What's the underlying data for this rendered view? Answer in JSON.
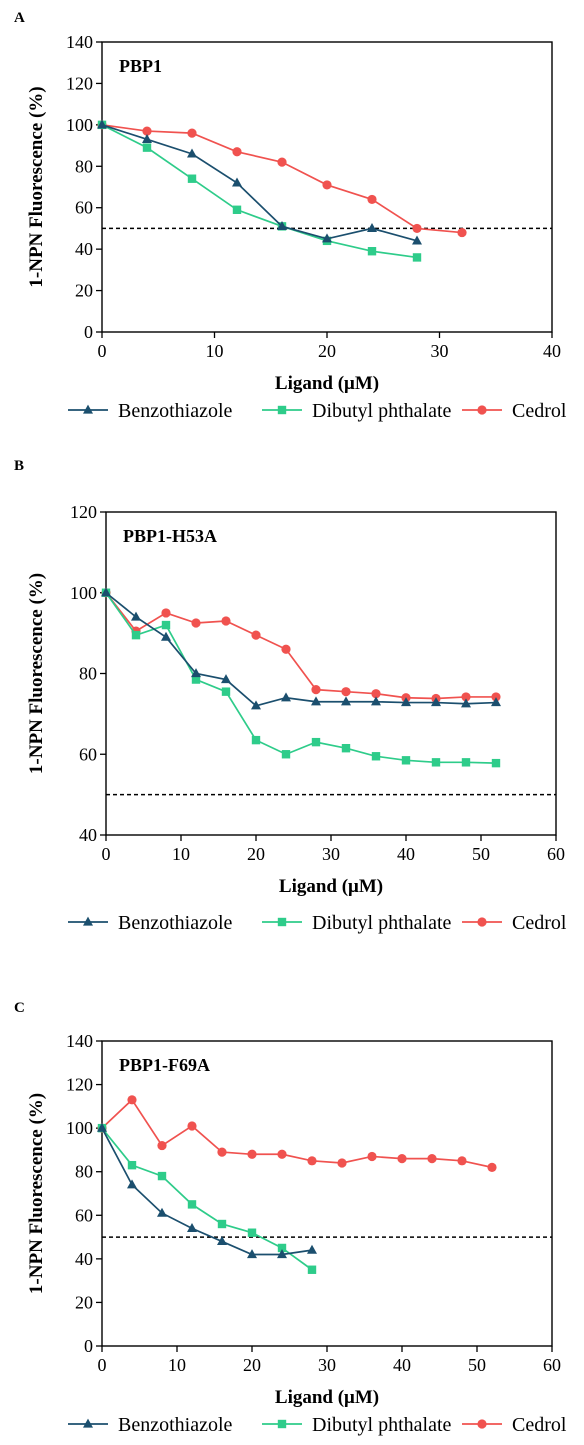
{
  "colors": {
    "benzothiazole": "#1b4f6e",
    "dibutyl_phthalate": "#2ecc8a",
    "cedrol": "#f0524f"
  },
  "legend": [
    {
      "key": "benzothiazole",
      "label": "Benzothiazole",
      "marker": "triangle"
    },
    {
      "key": "dibutyl_phthalate",
      "label": "Dibutyl phthalate",
      "marker": "square"
    },
    {
      "key": "cedrol",
      "label": "Cedrol",
      "marker": "circle"
    }
  ],
  "chart_data": [
    {
      "panel": "A",
      "type": "line",
      "title": "PBP1",
      "xlabel": "Ligand (μM)",
      "ylabel": "1-NPN Fluorescence (%)",
      "xlim": [
        0,
        40
      ],
      "ylim": [
        0,
        140
      ],
      "xticks": [
        0,
        10,
        20,
        30,
        40
      ],
      "yticks": [
        0,
        20,
        40,
        60,
        80,
        100,
        120,
        140
      ],
      "reference_line": 50,
      "series": [
        {
          "name": "Benzothiazole",
          "key": "benzothiazole",
          "marker": "triangle",
          "x": [
            0,
            4,
            8,
            12,
            16,
            20,
            24,
            28
          ],
          "y": [
            100,
            93,
            86,
            72,
            51,
            45,
            50,
            44
          ]
        },
        {
          "name": "Dibutyl phthalate",
          "key": "dibutyl_phthalate",
          "marker": "square",
          "x": [
            0,
            4,
            8,
            12,
            16,
            20,
            24,
            28
          ],
          "y": [
            100,
            89,
            74,
            59,
            51,
            44,
            39,
            36
          ]
        },
        {
          "name": "Cedrol",
          "key": "cedrol",
          "marker": "circle",
          "x": [
            0,
            4,
            8,
            12,
            16,
            20,
            24,
            28,
            32
          ],
          "y": [
            100,
            97,
            96,
            87,
            82,
            71,
            64,
            50,
            48
          ]
        }
      ]
    },
    {
      "panel": "B",
      "type": "line",
      "title": "PBP1-H53A",
      "xlabel": "Ligand (μM)",
      "ylabel": "1-NPN Fluorescence (%)",
      "xlim": [
        0,
        60
      ],
      "ylim": [
        40,
        120
      ],
      "xticks": [
        0,
        10,
        20,
        30,
        40,
        50,
        60
      ],
      "yticks": [
        40,
        60,
        80,
        100,
        120
      ],
      "reference_line": 50,
      "series": [
        {
          "name": "Benzothiazole",
          "key": "benzothiazole",
          "marker": "triangle",
          "x": [
            0,
            4,
            8,
            12,
            16,
            20,
            24,
            28,
            32,
            36,
            40,
            44,
            48,
            52
          ],
          "y": [
            100,
            94,
            89,
            80,
            78.5,
            72,
            74,
            73,
            73,
            73,
            72.8,
            72.8,
            72.5,
            72.8
          ]
        },
        {
          "name": "Dibutyl phthalate",
          "key": "dibutyl_phthalate",
          "marker": "square",
          "x": [
            0,
            4,
            8,
            12,
            16,
            20,
            24,
            28,
            32,
            36,
            40,
            44,
            48,
            52
          ],
          "y": [
            100,
            89.5,
            92,
            78.5,
            75.5,
            63.5,
            60,
            63,
            61.5,
            59.5,
            58.5,
            58,
            58,
            57.8
          ]
        },
        {
          "name": "Cedrol",
          "key": "cedrol",
          "marker": "circle",
          "x": [
            0,
            4,
            8,
            12,
            16,
            20,
            24,
            28,
            32,
            36,
            40,
            44,
            48,
            52
          ],
          "y": [
            100,
            90.5,
            95,
            92.5,
            93,
            89.5,
            86,
            76,
            75.5,
            75,
            74,
            73.8,
            74.2,
            74.2
          ]
        }
      ]
    },
    {
      "panel": "C",
      "type": "line",
      "title": "PBP1-F69A",
      "xlabel": "Ligand (μM)",
      "ylabel": "1-NPN Fluorescence (%)",
      "xlim": [
        0,
        60
      ],
      "ylim": [
        0,
        140
      ],
      "xticks": [
        0,
        10,
        20,
        30,
        40,
        50,
        60
      ],
      "yticks": [
        0,
        20,
        40,
        60,
        80,
        100,
        120,
        140
      ],
      "reference_line": 50,
      "series": [
        {
          "name": "Benzothiazole",
          "key": "benzothiazole",
          "marker": "triangle",
          "x": [
            0,
            4,
            8,
            12,
            16,
            20,
            24,
            28
          ],
          "y": [
            100,
            74,
            61,
            54,
            48,
            42,
            42,
            44
          ]
        },
        {
          "name": "Dibutyl phthalate",
          "key": "dibutyl_phthalate",
          "marker": "square",
          "x": [
            0,
            4,
            8,
            12,
            16,
            20,
            24,
            28
          ],
          "y": [
            100,
            83,
            78,
            65,
            56,
            52,
            45,
            35
          ]
        },
        {
          "name": "Cedrol",
          "key": "cedrol",
          "marker": "circle",
          "x": [
            0,
            4,
            8,
            12,
            16,
            20,
            24,
            28,
            32,
            36,
            40,
            44,
            48,
            52
          ],
          "y": [
            100,
            113,
            92,
            101,
            89,
            88,
            88,
            85,
            84,
            87,
            86,
            86,
            85,
            82
          ]
        }
      ]
    }
  ]
}
